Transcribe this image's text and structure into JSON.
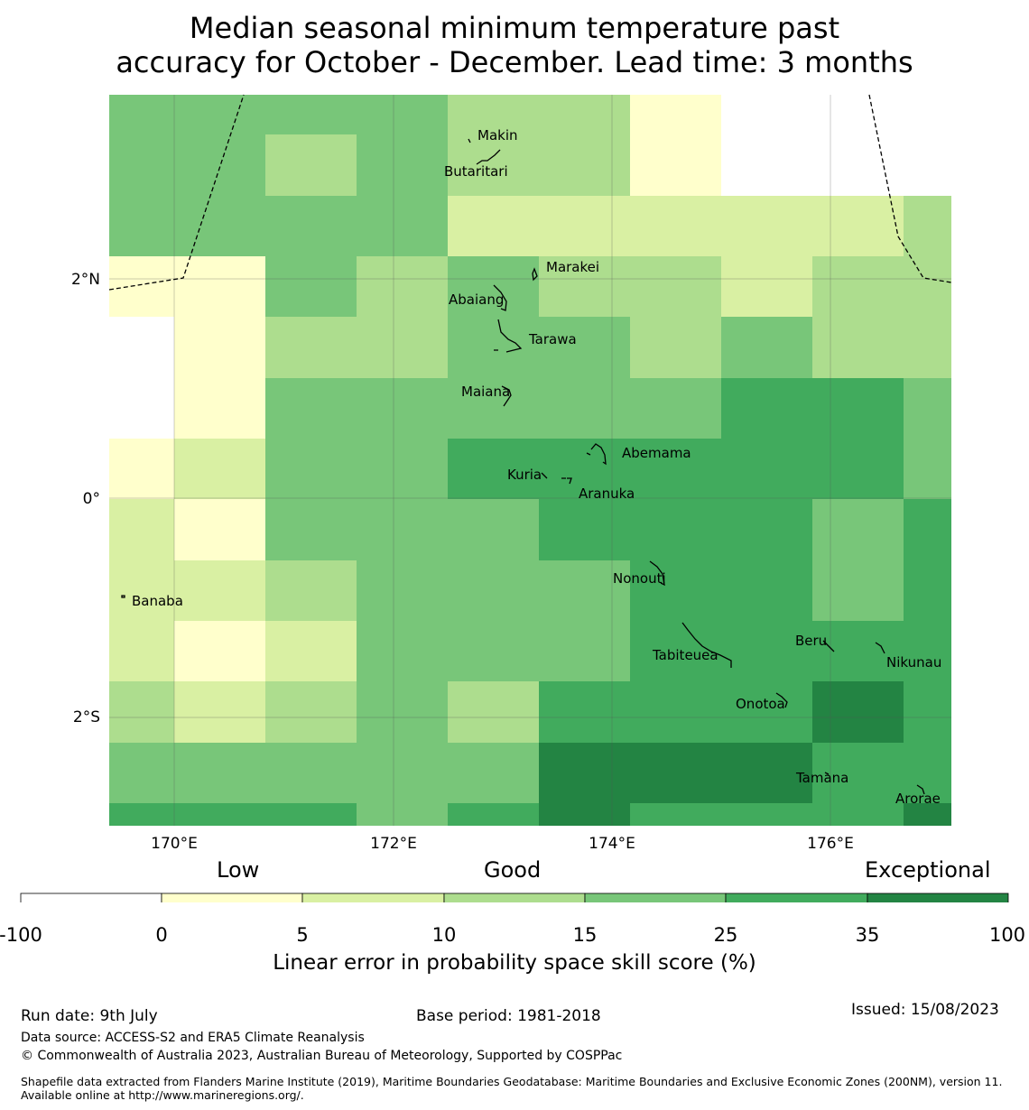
{
  "title": {
    "line1": "Median seasonal minimum temperature past",
    "line2": "accuracy for October - December. Lead time: 3 months"
  },
  "map": {
    "lon_labels": [
      "170°E",
      "172°E",
      "174°E",
      "176°E"
    ],
    "lat_labels": [
      "2°N",
      "0°",
      "2°S"
    ],
    "places": [
      "Makin",
      "Butaritari",
      "Marakei",
      "Abaiang",
      "Tarawa",
      "Maiana",
      "Abemama",
      "Kuria",
      "Aranuka",
      "Nonouti",
      "Banaba",
      "Beru",
      "Tabiteuea",
      "Nikunau",
      "Onotoa",
      "Tamana",
      "Arorae"
    ],
    "colors": [
      "#ffffff",
      "#ffffcc",
      "#d9f0a3",
      "#addd8e",
      "#78c679",
      "#41ab5d",
      "#238443"
    ]
  },
  "colorbar": {
    "categories": [
      "Low",
      "Good",
      "Exceptional"
    ],
    "ticks": [
      "-100",
      "0",
      "5",
      "10",
      "15",
      "25",
      "35",
      "100"
    ],
    "label": "Linear error in probability space skill score (%)"
  },
  "footer": {
    "run_date": "Run date: 9th July",
    "base_period": "Base period: 1981-2018",
    "issued": "Issued: 15/08/2023",
    "data_source": "Data source: ACCESS-S2 and ERA5 Climate Reanalysis",
    "copyright": "© Commonwealth of Australia 2023, Australian Bureau of Meteorology, Supported by COSPPac",
    "shapefile": "Shapefile data extracted from Flanders Marine Institute (2019), Maritime Boundaries Geodatabase: Maritime Boundaries and Exclusive Economic Zones (200NM), version 11. Available online at http://www.marineregions.org/."
  }
}
